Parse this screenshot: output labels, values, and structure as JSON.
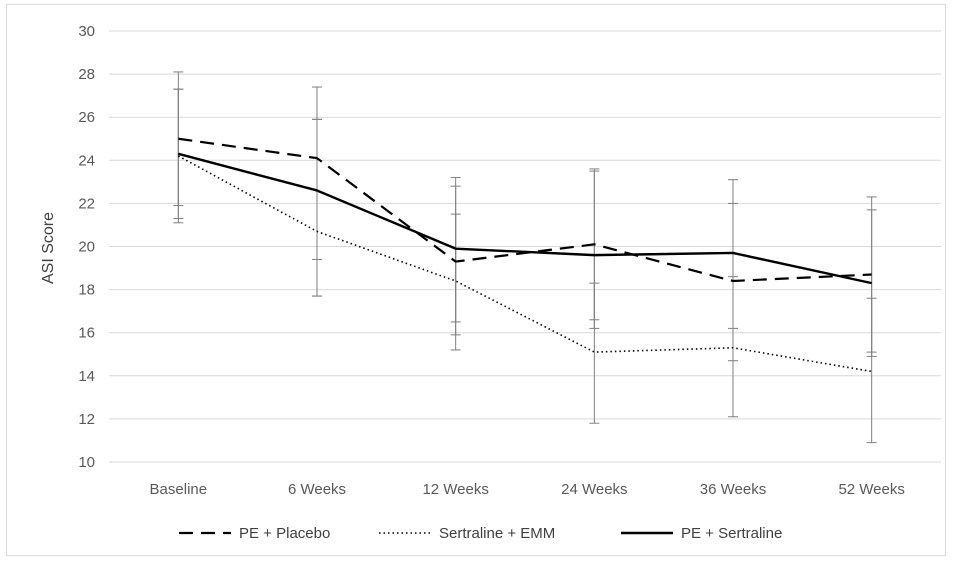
{
  "chart_data": {
    "type": "line",
    "title": "",
    "xlabel": "",
    "ylabel": "ASI Score",
    "ylim": [
      10,
      30
    ],
    "yticks": [
      10,
      12,
      14,
      16,
      18,
      20,
      22,
      24,
      26,
      28,
      30
    ],
    "grid": "horizontal",
    "legend_position": "bottom",
    "categories": [
      "Baseline",
      "6 Weeks",
      "12 Weeks",
      "24 Weeks",
      "36 Weeks",
      "52 Weeks"
    ],
    "series": [
      {
        "name": "PE + Placebo",
        "style": "dashed",
        "color": "#000000",
        "values": [
          25.0,
          24.1,
          19.3,
          20.1,
          18.4,
          18.7
        ],
        "error_low": [
          21.9,
          17.7,
          15.9,
          16.6,
          14.7,
          14.9
        ],
        "error_high": [
          28.1,
          27.4,
          22.8,
          23.6,
          22.0,
          22.3
        ]
      },
      {
        "name": "Sertraline + EMM",
        "style": "dotted",
        "color": "#000000",
        "values": [
          24.2,
          20.7,
          18.4,
          15.1,
          15.3,
          14.2
        ],
        "error_low": [
          21.3,
          19.4,
          15.2,
          11.8,
          12.1,
          10.9
        ],
        "error_high": [
          27.3,
          25.9,
          23.2,
          23.5,
          23.1,
          17.6
        ]
      },
      {
        "name": "PE + Sertraline",
        "style": "solid",
        "color": "#000000",
        "values": [
          24.3,
          22.6,
          19.9,
          19.6,
          19.7,
          18.3
        ],
        "error_low": [
          21.1,
          17.7,
          16.5,
          16.2,
          16.2,
          15.1
        ],
        "error_high": [
          27.3,
          25.9,
          21.5,
          18.3,
          18.6,
          21.7
        ]
      }
    ]
  }
}
